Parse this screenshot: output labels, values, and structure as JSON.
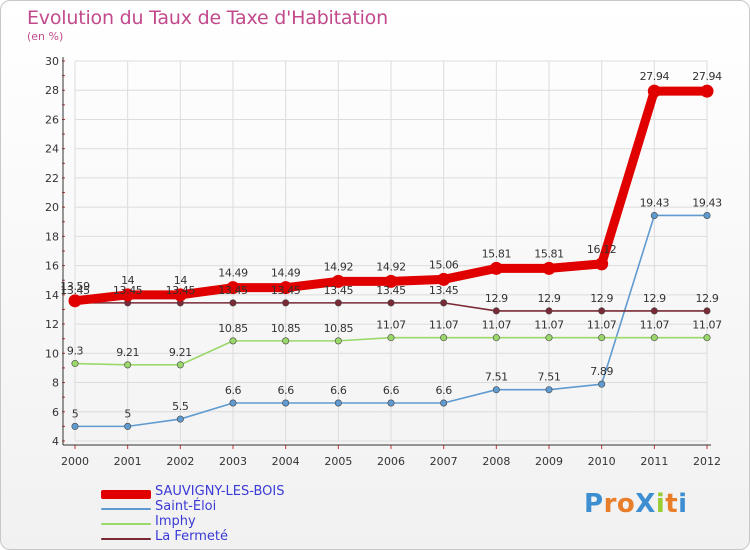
{
  "header": {
    "title": "Evolution du Taux de Taxe d'Habitation",
    "subtitle": "(en %)"
  },
  "colors": {
    "title": "#c24a8c",
    "legend_text": "#3a3ad6",
    "grid": "#dcdcdc"
  },
  "logo": {
    "text": "ProXiti",
    "letters": [
      {
        "ch": "P",
        "color": "#3d8fd1"
      },
      {
        "ch": "r",
        "color": "#e87d2a"
      },
      {
        "ch": "o",
        "color": "#e87d2a"
      },
      {
        "ch": "X",
        "color": "#3d8fd1"
      },
      {
        "ch": "i",
        "color": "#9acd32"
      },
      {
        "ch": "t",
        "color": "#e87d2a"
      },
      {
        "ch": "i",
        "color": "#3d8fd1"
      }
    ]
  },
  "chart_data": {
    "type": "line",
    "title": "Evolution du Taux de Taxe d'Habitation",
    "subtitle": "(en %)",
    "xlabel": "",
    "ylabel": "",
    "x": [
      "2000",
      "2001",
      "2002",
      "2003",
      "2004",
      "2005",
      "2006",
      "2007",
      "2008",
      "2009",
      "2010",
      "2011",
      "2012"
    ],
    "ylim": [
      4,
      30
    ],
    "yticks": [
      4,
      6,
      8,
      10,
      12,
      14,
      16,
      18,
      20,
      22,
      24,
      26,
      28,
      30
    ],
    "grid": true,
    "legend_position": "bottom-left",
    "series": [
      {
        "name": "SAUVIGNY-LES-BOIS",
        "color": "#e00000",
        "width": "thick",
        "values": [
          13.59,
          14,
          14,
          14.49,
          14.49,
          14.92,
          14.92,
          15.06,
          15.81,
          15.81,
          16.12,
          27.94,
          27.94
        ],
        "labels": [
          "13.59",
          "14",
          "14",
          "14.49",
          "14.49",
          "14.92",
          "14.92",
          "15.06",
          "15.81",
          "15.81",
          "16.12",
          "27.94",
          "27.94"
        ]
      },
      {
        "name": "Saint-Éloi",
        "color": "#5f9bd1",
        "width": "thin",
        "values": [
          5,
          5,
          5.5,
          6.6,
          6.6,
          6.6,
          6.6,
          6.6,
          7.51,
          7.51,
          7.89,
          19.43,
          19.43
        ],
        "labels": [
          "5",
          "5",
          "5.5",
          "6.6",
          "6.6",
          "6.6",
          "6.6",
          "6.6",
          "7.51",
          "7.51",
          "7.89",
          "19.43",
          "19.43"
        ]
      },
      {
        "name": "Imphy",
        "color": "#9bd86a",
        "width": "thin",
        "values": [
          9.3,
          9.21,
          9.21,
          10.85,
          10.85,
          10.85,
          11.07,
          11.07,
          11.07,
          11.07,
          11.07,
          11.07,
          11.07
        ],
        "labels": [
          "9.3",
          "9.21",
          "9.21",
          "10.85",
          "10.85",
          "10.85",
          "11.07",
          "11.07",
          "11.07",
          "11.07",
          "11.07",
          "11.07",
          "11.07"
        ]
      },
      {
        "name": "La Fermeté",
        "color": "#7a2a36",
        "width": "thin",
        "values": [
          13.45,
          13.45,
          13.45,
          13.45,
          13.45,
          13.45,
          13.45,
          13.45,
          12.9,
          12.9,
          12.9,
          12.9,
          12.9
        ],
        "labels": [
          "13.45",
          "13.45",
          "13.45",
          "13.45",
          "13.45",
          "13.45",
          "13.45",
          "13.45",
          "12.9",
          "12.9",
          "12.9",
          "12.9",
          "12.9"
        ]
      }
    ]
  }
}
